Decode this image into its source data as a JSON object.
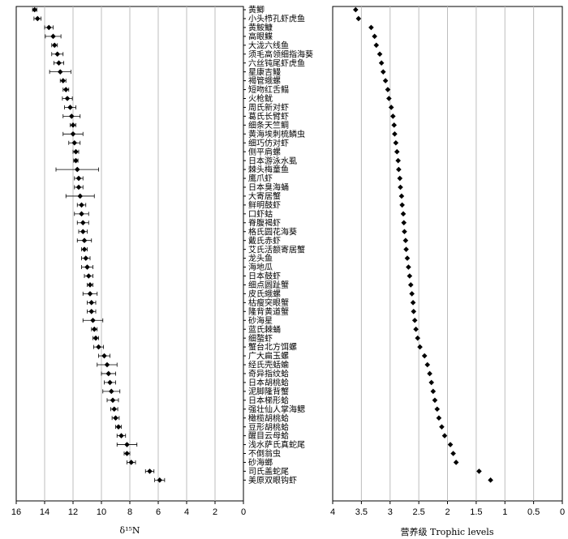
{
  "chart_data": [
    {
      "type": "scatter",
      "orientation": "horizontal-dot-with-errorbars",
      "xlabel": "δ¹⁵N",
      "xlim": [
        16,
        0
      ],
      "x_reversed": true,
      "x_ticks": [
        "16",
        "14",
        "12",
        "10",
        "8",
        "6",
        "4",
        "2",
        "0"
      ],
      "grid": "vertical",
      "categories": [
        "黄鲫",
        "小头栉孔虾虎鱼",
        "黄鮟鱇",
        "高眼鲽",
        "大泷六线鱼",
        "须毛高领细指海葵",
        "六丝钝尾虾虎鱼",
        "星康吉鳗",
        "褐管蛾螺",
        "短吻红舌鳎",
        "火枪鱿",
        "周氏新对虾",
        "葛氏长臂虾",
        "细条天竺鲷",
        "黄海埃刺梳鳞虫",
        "细巧仿对虾",
        "侧平肩螺",
        "日本游泳水虱",
        "棘头梅童鱼",
        "鹰爪虾",
        "日本臭海蛹",
        "大寄居蟹",
        "鲜明鼓虾",
        "口虾蛄",
        "脊腹褐虾",
        "格氏圆花海葵",
        "戴氏赤虾",
        "艾氏活额寄居蟹",
        "龙头鱼",
        "海地瓜",
        "日本鼓虾",
        "细点圆趾蟹",
        "皮氏蛾螺",
        "枯瘦突眼蟹",
        "隆背黄道蟹",
        "砂海星",
        "蓝氏棘蛹",
        "细螯虾",
        "蟹台北方饵螺",
        "广大扁玉螺",
        "经氏壳蛞蝓",
        "奇异指纹蛤",
        "日本胡桃蛤",
        "泥脚隆背蟹",
        "日本梯形蛤",
        "强壮仙人掌海鳃",
        "橄榄胡桃蛤",
        "豆形胡桃蛤",
        "醒目云母蛤",
        "浅水萨氏真蛇尾",
        "不倒翁虫",
        "砂海螂",
        "司氏盖蛇尾",
        "美原双眼钩虾"
      ],
      "values": [
        14.7,
        14.5,
        13.7,
        13.4,
        13.3,
        13.1,
        13.0,
        12.9,
        12.7,
        12.5,
        12.4,
        12.2,
        12.1,
        12.0,
        12.0,
        11.9,
        11.8,
        11.8,
        11.7,
        11.6,
        11.6,
        11.5,
        11.4,
        11.4,
        11.3,
        11.3,
        11.2,
        11.2,
        11.1,
        11.0,
        10.9,
        10.8,
        10.8,
        10.7,
        10.7,
        10.6,
        10.5,
        10.4,
        10.2,
        9.8,
        9.6,
        9.5,
        9.4,
        9.3,
        9.2,
        9.1,
        9.0,
        8.8,
        8.6,
        8.2,
        8.2,
        7.9,
        6.6,
        5.9
      ],
      "errors": [
        0.15,
        0.25,
        0.3,
        0.55,
        0.2,
        0.4,
        0.35,
        0.75,
        0.2,
        0.2,
        0.35,
        0.4,
        0.6,
        0.2,
        0.7,
        0.4,
        0.2,
        0.15,
        1.5,
        0.3,
        0.3,
        1.0,
        0.3,
        0.5,
        0.4,
        0.3,
        0.5,
        0.2,
        0.3,
        0.4,
        0.3,
        0.2,
        0.5,
        0.3,
        0.3,
        0.7,
        0.2,
        0.2,
        0.35,
        0.4,
        0.7,
        0.5,
        0.4,
        0.6,
        0.4,
        0.25,
        0.25,
        0.2,
        0.3,
        0.7,
        0.2,
        0.3,
        0.3,
        0.35
      ],
      "marker_color": "#000000"
    },
    {
      "type": "scatter",
      "xlabel": "营养级 Trophic levels",
      "xlim": [
        4,
        0
      ],
      "x_reversed": true,
      "x_ticks": [
        "4",
        "3.5",
        "3",
        "2.5",
        "2",
        "1.5",
        "1",
        "0.5",
        "0"
      ],
      "grid": "vertical",
      "values": [
        3.6,
        3.55,
        3.33,
        3.27,
        3.24,
        3.18,
        3.15,
        3.12,
        3.08,
        3.04,
        3.02,
        2.98,
        2.95,
        2.93,
        2.92,
        2.9,
        2.88,
        2.86,
        2.85,
        2.83,
        2.82,
        2.8,
        2.79,
        2.77,
        2.76,
        2.75,
        2.73,
        2.72,
        2.7,
        2.68,
        2.66,
        2.64,
        2.62,
        2.6,
        2.59,
        2.57,
        2.55,
        2.52,
        2.48,
        2.4,
        2.35,
        2.31,
        2.28,
        2.25,
        2.22,
        2.18,
        2.15,
        2.1,
        2.05,
        1.95,
        1.9,
        1.85,
        1.45,
        1.25
      ],
      "marker_color": "#000000"
    }
  ]
}
